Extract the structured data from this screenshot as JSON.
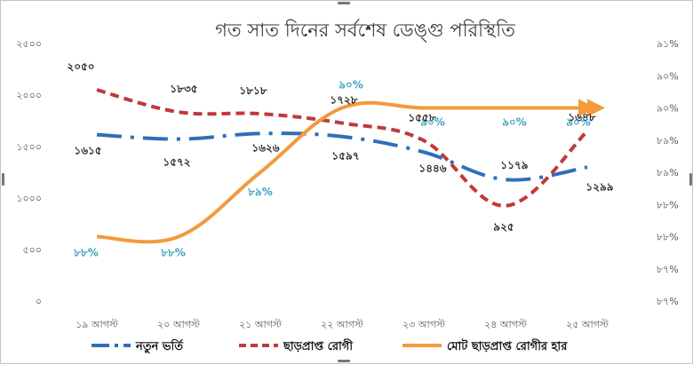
{
  "chart_data": {
    "type": "line",
    "title": "গত সাত দিনের সর্বশেষ ডেঙ্গু পরিস্থিতি",
    "categories": [
      "১৯ আগস্ট",
      "২০ আগস্ট",
      "২১ আগস্ট",
      "২২ আগস্ট",
      "২৩ আগস্ট",
      "২৪ আগস্ট",
      "২৫ আগস্ট"
    ],
    "left_axis": {
      "range": [
        0,
        2500
      ],
      "ticks": [
        0,
        500,
        1000,
        1500,
        2000,
        2500
      ],
      "tick_labels": [
        "০",
        "৫০০",
        "১০০০",
        "১৫০০",
        "২০০০",
        "২৫০০"
      ]
    },
    "right_axis": {
      "range": [
        87,
        91
      ],
      "ticks": [
        87,
        87.5,
        88,
        88.5,
        89,
        89.5,
        90,
        90.5,
        91
      ],
      "tick_labels": [
        "৮৭%",
        "৮৭%",
        "৮৮%",
        "৮৮%",
        "৮৯%",
        "৮৯%",
        "৯০%",
        "৯০%",
        "৯১%"
      ]
    },
    "series": [
      {
        "name": "নতুন ভর্তি",
        "axis": "left",
        "color": "#2e6fb8",
        "style": "dashdot",
        "values": [
          1615,
          1572,
          1626,
          1597,
          1446,
          1179,
          1299
        ],
        "labels": [
          "১৬১৫",
          "১৫৭২",
          "১৬২৬",
          "১৫৯৭",
          "১৪৪৬",
          "১১৭৯",
          "১২৯৯"
        ]
      },
      {
        "name": "ছাড়প্রাপ্ত রোগী",
        "axis": "left",
        "color": "#c0393b",
        "style": "dashed",
        "values": [
          2050,
          1835,
          1818,
          1728,
          1558,
          925,
          1648
        ],
        "labels": [
          "২০৫০",
          "১৮৩৫",
          "১৮১৮",
          "১৭২৮",
          "১৫৫৮",
          "৯২৫",
          "১৬৪৮"
        ]
      },
      {
        "name": "মোট ছাড়প্রাপ্ত রোগীর হার",
        "axis": "right",
        "color": "#f39a3d",
        "style": "solid",
        "values": [
          88,
          88,
          89,
          90,
          90,
          90,
          90
        ],
        "labels": [
          "৮৮%",
          "৮৮%",
          "৮৯%",
          "৯০%",
          "৯০%",
          "৯০%",
          "৯০%"
        ]
      }
    ],
    "legend_position": "bottom",
    "grid": false
  }
}
